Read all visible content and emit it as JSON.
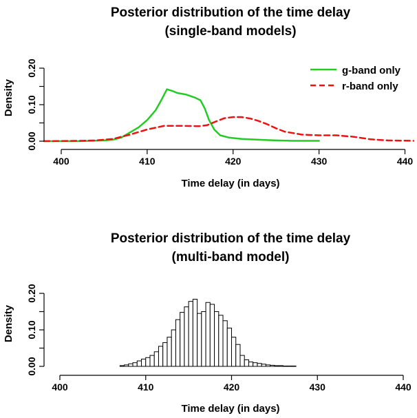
{
  "chart_data": [
    {
      "type": "line",
      "title": "Posterior distribution of the time delay",
      "subtitle": "(single-band models)",
      "xlabel": "Time delay (in days)",
      "ylabel": "Density",
      "xlim": [
        398,
        441
      ],
      "ylim": [
        0,
        0.2
      ],
      "x_ticks": [
        "400",
        "410",
        "420",
        "430",
        "440"
      ],
      "y_ticks": [
        "0.00",
        "0.10",
        "0.20"
      ],
      "y_minor_ticks": [
        0.05,
        0.15
      ],
      "grid": false,
      "legend_position": "top-right",
      "series": [
        {
          "name": "g-band only",
          "color": "#22cc22",
          "style": "solid",
          "x": [
            398,
            402,
            405,
            406,
            407,
            408,
            409,
            410,
            411,
            411.7,
            412.3,
            412.9,
            413.5,
            414.5,
            415.5,
            416.2,
            416.7,
            417.2,
            417.8,
            418.5,
            419.5,
            421,
            423,
            425,
            427,
            430
          ],
          "y": [
            0,
            0,
            0.002,
            0.004,
            0.01,
            0.024,
            0.038,
            0.058,
            0.085,
            0.115,
            0.142,
            0.138,
            0.132,
            0.128,
            0.12,
            0.112,
            0.09,
            0.058,
            0.032,
            0.016,
            0.01,
            0.006,
            0.004,
            0.002,
            0.001,
            0.001
          ]
        },
        {
          "name": "r-band only",
          "color": "#ee1111",
          "style": "dashed",
          "x": [
            398,
            402,
            404,
            406,
            408,
            410,
            412,
            414,
            416,
            417,
            418,
            419,
            420,
            421,
            422,
            423,
            424,
            425,
            426,
            428,
            430,
            432,
            434,
            436,
            438,
            441
          ],
          "y": [
            0,
            0.001,
            0.002,
            0.006,
            0.018,
            0.032,
            0.042,
            0.042,
            0.041,
            0.044,
            0.054,
            0.063,
            0.066,
            0.066,
            0.062,
            0.055,
            0.046,
            0.035,
            0.026,
            0.018,
            0.016,
            0.016,
            0.012,
            0.005,
            0.002,
            0.001
          ]
        }
      ]
    },
    {
      "type": "bar",
      "title": "Posterior distribution of the time delay",
      "subtitle": "(multi-band model)",
      "xlabel": "Time delay (in days)",
      "ylabel": "Density",
      "xlim": [
        400,
        440
      ],
      "ylim": [
        0,
        0.2
      ],
      "x_ticks": [
        "400",
        "410",
        "420",
        "430",
        "440"
      ],
      "y_ticks": [
        "0.00",
        "0.10",
        "0.20"
      ],
      "y_minor_ticks": [
        0.05,
        0.15
      ],
      "grid": false,
      "bin_width": 0.5,
      "bin_start": 407,
      "values": [
        0.002,
        0.004,
        0.007,
        0.01,
        0.015,
        0.02,
        0.024,
        0.03,
        0.04,
        0.055,
        0.065,
        0.08,
        0.1,
        0.128,
        0.148,
        0.163,
        0.178,
        0.184,
        0.145,
        0.15,
        0.175,
        0.17,
        0.15,
        0.14,
        0.125,
        0.105,
        0.08,
        0.06,
        0.03,
        0.018,
        0.012,
        0.01,
        0.008,
        0.006,
        0.004,
        0.003,
        0.002,
        0.002,
        0.001,
        0.001,
        0.001
      ]
    }
  ]
}
